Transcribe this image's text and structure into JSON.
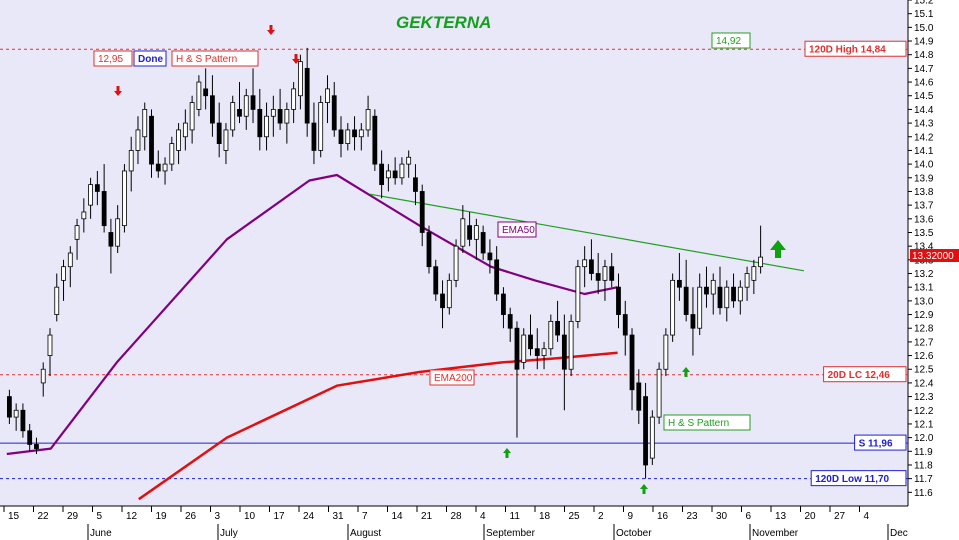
{
  "chart_data": {
    "type": "candlestick",
    "title": "GEKTERNA",
    "ylim": [
      11.5,
      15.2
    ],
    "yticks": [
      "11.6",
      "11.7",
      "11.8",
      "11.9",
      "12.0",
      "12.1",
      "12.2",
      "12.3",
      "12.4",
      "12.5",
      "12.6",
      "12.7",
      "12.8",
      "12.9",
      "13.0",
      "13.1",
      "13.2",
      "13.3",
      "13.4",
      "13.5",
      "13.6",
      "13.7",
      "13.8",
      "13.9",
      "14.0",
      "14.1",
      "14.2",
      "14.3",
      "14.4",
      "14.5",
      "14.6",
      "14.7",
      "14.8",
      "14.9",
      "15.0",
      "15.1",
      "15.2"
    ],
    "xticks": [
      "15",
      "22",
      "29",
      "5",
      "12",
      "19",
      "26",
      "3",
      "10",
      "17",
      "24",
      "31",
      "7",
      "14",
      "21",
      "28",
      "4",
      "11",
      "18",
      "25",
      "2",
      "9",
      "16",
      "23",
      "30",
      "6",
      "13",
      "20",
      "27",
      "4"
    ],
    "months": [
      "June",
      "July",
      "August",
      "September",
      "October",
      "November",
      "Dec"
    ],
    "last_price_label": "13.32000",
    "ohlc": [
      [
        12.3,
        12.35,
        12.1,
        12.15
      ],
      [
        12.15,
        12.25,
        12.05,
        12.2
      ],
      [
        12.2,
        12.25,
        12.0,
        12.05
      ],
      [
        12.05,
        12.1,
        11.9,
        11.95
      ],
      [
        11.95,
        12.0,
        11.88,
        11.92
      ],
      [
        12.4,
        12.55,
        12.3,
        12.5
      ],
      [
        12.6,
        12.8,
        12.45,
        12.75
      ],
      [
        12.9,
        13.2,
        12.85,
        13.1
      ],
      [
        13.15,
        13.3,
        13.0,
        13.25
      ],
      [
        13.25,
        13.4,
        13.1,
        13.35
      ],
      [
        13.45,
        13.6,
        13.3,
        13.55
      ],
      [
        13.6,
        13.75,
        13.5,
        13.65
      ],
      [
        13.7,
        13.9,
        13.6,
        13.85
      ],
      [
        13.85,
        13.95,
        13.7,
        13.8
      ],
      [
        13.8,
        14.0,
        13.5,
        13.55
      ],
      [
        13.5,
        13.6,
        13.2,
        13.4
      ],
      [
        13.4,
        13.7,
        13.35,
        13.6
      ],
      [
        13.55,
        14.0,
        13.5,
        13.95
      ],
      [
        13.95,
        14.2,
        13.8,
        14.1
      ],
      [
        14.1,
        14.35,
        14.0,
        14.25
      ],
      [
        14.2,
        14.45,
        14.1,
        14.4
      ],
      [
        14.35,
        14.4,
        13.9,
        14.0
      ],
      [
        14.0,
        14.1,
        13.9,
        13.95
      ],
      [
        13.95,
        14.05,
        13.85,
        14.0
      ],
      [
        14.0,
        14.2,
        13.95,
        14.15
      ],
      [
        14.1,
        14.3,
        14.0,
        14.25
      ],
      [
        14.2,
        14.4,
        14.1,
        14.3
      ],
      [
        14.25,
        14.5,
        14.15,
        14.45
      ],
      [
        14.4,
        14.65,
        14.35,
        14.6
      ],
      [
        14.55,
        14.7,
        14.4,
        14.5
      ],
      [
        14.5,
        14.65,
        14.2,
        14.3
      ],
      [
        14.3,
        14.45,
        14.05,
        14.15
      ],
      [
        14.1,
        14.3,
        14.0,
        14.25
      ],
      [
        14.25,
        14.5,
        14.2,
        14.45
      ],
      [
        14.4,
        14.6,
        14.3,
        14.35
      ],
      [
        14.35,
        14.55,
        14.25,
        14.5
      ],
      [
        14.5,
        14.7,
        14.3,
        14.4
      ],
      [
        14.4,
        14.55,
        14.1,
        14.2
      ],
      [
        14.2,
        14.45,
        14.1,
        14.35
      ],
      [
        14.35,
        14.5,
        14.2,
        14.4
      ],
      [
        14.4,
        14.55,
        14.25,
        14.3
      ],
      [
        14.3,
        14.45,
        14.15,
        14.4
      ],
      [
        14.4,
        14.6,
        14.3,
        14.55
      ],
      [
        14.5,
        14.8,
        14.4,
        14.75
      ],
      [
        14.7,
        14.85,
        14.2,
        14.3
      ],
      [
        14.3,
        14.45,
        14.0,
        14.1
      ],
      [
        14.1,
        14.5,
        14.05,
        14.45
      ],
      [
        14.45,
        14.65,
        14.3,
        14.55
      ],
      [
        14.5,
        14.6,
        14.2,
        14.25
      ],
      [
        14.25,
        14.35,
        14.05,
        14.15
      ],
      [
        14.15,
        14.3,
        14.1,
        14.25
      ],
      [
        14.25,
        14.35,
        14.1,
        14.2
      ],
      [
        14.2,
        14.3,
        14.1,
        14.25
      ],
      [
        14.25,
        14.5,
        14.2,
        14.4
      ],
      [
        14.35,
        14.4,
        13.95,
        14.0
      ],
      [
        14.0,
        14.1,
        13.75,
        13.85
      ],
      [
        13.9,
        14.0,
        13.8,
        13.95
      ],
      [
        13.95,
        14.05,
        13.85,
        13.9
      ],
      [
        13.9,
        14.05,
        13.85,
        14.0
      ],
      [
        14.0,
        14.1,
        13.9,
        14.05
      ],
      [
        13.9,
        14.0,
        13.7,
        13.8
      ],
      [
        13.8,
        13.85,
        13.4,
        13.5
      ],
      [
        13.5,
        13.55,
        13.2,
        13.25
      ],
      [
        13.25,
        13.3,
        13.0,
        13.05
      ],
      [
        13.05,
        13.15,
        12.8,
        12.95
      ],
      [
        12.95,
        13.2,
        12.9,
        13.15
      ],
      [
        13.15,
        13.45,
        13.1,
        13.4
      ],
      [
        13.4,
        13.7,
        13.35,
        13.6
      ],
      [
        13.55,
        13.65,
        13.4,
        13.45
      ],
      [
        13.45,
        13.6,
        13.3,
        13.55
      ],
      [
        13.5,
        13.55,
        13.3,
        13.35
      ],
      [
        13.35,
        13.45,
        13.2,
        13.3
      ],
      [
        13.3,
        13.4,
        13.0,
        13.05
      ],
      [
        13.05,
        13.1,
        12.8,
        12.9
      ],
      [
        12.9,
        12.95,
        12.7,
        12.8
      ],
      [
        12.8,
        12.85,
        12.0,
        12.5
      ],
      [
        12.55,
        12.8,
        12.5,
        12.75
      ],
      [
        12.75,
        12.9,
        12.6,
        12.65
      ],
      [
        12.65,
        12.8,
        12.5,
        12.6
      ],
      [
        12.6,
        12.7,
        12.5,
        12.65
      ],
      [
        12.65,
        12.9,
        12.6,
        12.85
      ],
      [
        12.85,
        13.0,
        12.7,
        12.75
      ],
      [
        12.75,
        12.9,
        12.2,
        12.5
      ],
      [
        12.5,
        12.9,
        12.45,
        12.85
      ],
      [
        12.85,
        13.3,
        12.8,
        13.25
      ],
      [
        13.25,
        13.4,
        13.1,
        13.3
      ],
      [
        13.3,
        13.45,
        13.15,
        13.2
      ],
      [
        13.2,
        13.35,
        13.05,
        13.15
      ],
      [
        13.15,
        13.3,
        13.0,
        13.25
      ],
      [
        13.25,
        13.35,
        13.1,
        13.15
      ],
      [
        13.1,
        13.2,
        12.8,
        12.9
      ],
      [
        12.9,
        13.0,
        12.6,
        12.75
      ],
      [
        12.75,
        12.8,
        12.2,
        12.35
      ],
      [
        12.4,
        12.5,
        12.1,
        12.2
      ],
      [
        12.3,
        12.4,
        11.7,
        11.8
      ],
      [
        11.85,
        12.2,
        11.8,
        12.15
      ],
      [
        12.15,
        12.55,
        12.1,
        12.5
      ],
      [
        12.5,
        12.8,
        12.45,
        12.75
      ],
      [
        12.75,
        13.2,
        12.7,
        13.15
      ],
      [
        13.15,
        13.35,
        13.0,
        13.1
      ],
      [
        13.1,
        13.3,
        12.85,
        12.9
      ],
      [
        12.9,
        13.1,
        12.6,
        12.8
      ],
      [
        12.8,
        13.2,
        12.75,
        13.1
      ],
      [
        13.1,
        13.25,
        12.95,
        13.05
      ],
      [
        13.05,
        13.2,
        12.9,
        13.15
      ],
      [
        13.1,
        13.25,
        12.9,
        12.95
      ],
      [
        12.95,
        13.15,
        12.85,
        13.1
      ],
      [
        13.1,
        13.2,
        12.95,
        13.0
      ],
      [
        13.0,
        13.15,
        12.9,
        13.1
      ],
      [
        13.1,
        13.25,
        13.0,
        13.2
      ],
      [
        13.15,
        13.3,
        13.05,
        13.25
      ],
      [
        13.25,
        13.55,
        13.2,
        13.32
      ]
    ],
    "ema50": [
      [
        0,
        11.88
      ],
      [
        8,
        11.92
      ],
      [
        20,
        12.55
      ],
      [
        40,
        13.45
      ],
      [
        55,
        13.88
      ],
      [
        60,
        13.92
      ],
      [
        75,
        13.55
      ],
      [
        88,
        13.25
      ],
      [
        96,
        13.15
      ],
      [
        105,
        13.05
      ],
      [
        111,
        13.1
      ]
    ],
    "ema200": [
      [
        24,
        11.55
      ],
      [
        40,
        12.0
      ],
      [
        60,
        12.38
      ],
      [
        75,
        12.48
      ],
      [
        90,
        12.55
      ],
      [
        100,
        12.58
      ],
      [
        111,
        12.62
      ]
    ],
    "neckline": [
      [
        66,
        13.78
      ],
      [
        120,
        13.22
      ]
    ],
    "hlines": [
      {
        "value": 14.84,
        "color": "#e03030",
        "style": "dashed",
        "label": "120D High 14,84"
      },
      {
        "value": 12.46,
        "color": "#e03030",
        "style": "dashed",
        "label": "20D LC 12,46"
      },
      {
        "value": 11.96,
        "color": "#2020d0",
        "style": "solid",
        "label": "S 11,96"
      },
      {
        "value": 11.7,
        "color": "#2020d0",
        "style": "dashed",
        "label": "120D Low 11,70"
      }
    ],
    "annotations": {
      "price_1295": "12,95",
      "done": "Done",
      "hs_pattern_top": "H & S Pattern",
      "price_1492": "14,92",
      "ema50_label": "EMA50",
      "ema200_label": "EMA200",
      "hs_pattern_bottom": "H & S Pattern"
    },
    "grid": false,
    "background": "#e8e8f8",
    "colors": {
      "up": "#ffffff",
      "down": "#000000",
      "ema50": "#800080",
      "ema200": "#e01010",
      "neckline": "#20a020",
      "red": "#e03030",
      "blue": "#2020d0",
      "green": "#20a020"
    }
  }
}
